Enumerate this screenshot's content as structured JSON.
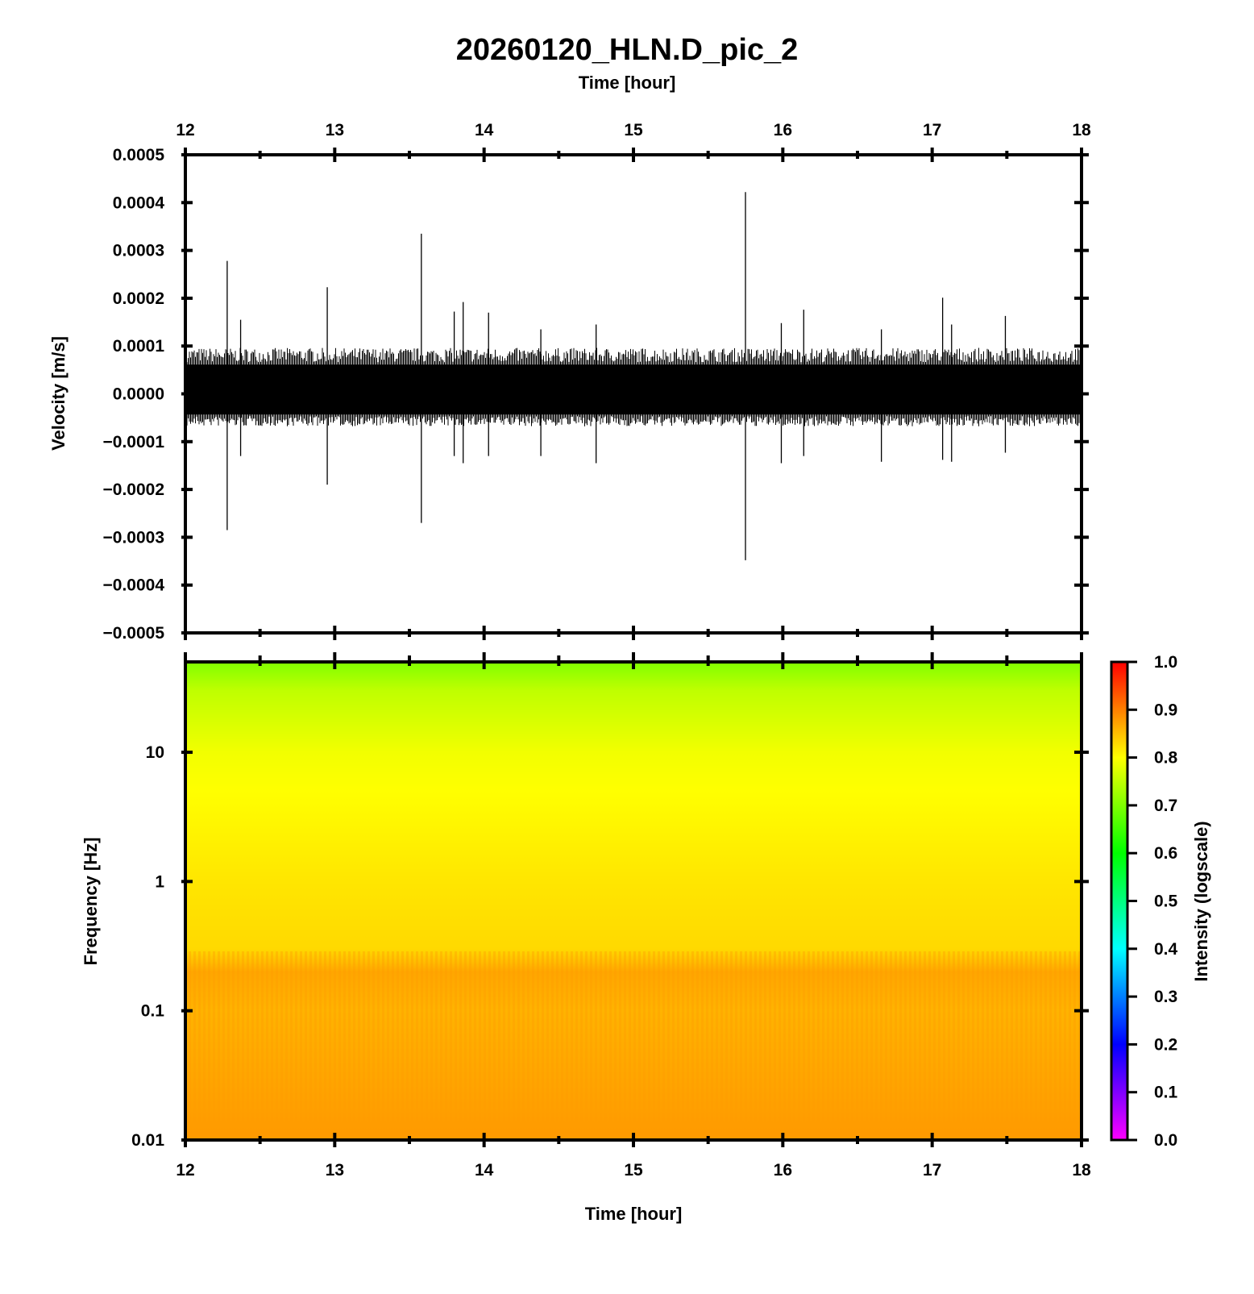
{
  "figure": {
    "title": "20260120_HLN.D_pic_2"
  },
  "chart_data": [
    {
      "type": "line",
      "panel": "waveform",
      "xlabel": "Time [hour]",
      "ylabel": "Velocity [m/s]",
      "xlim": [
        12,
        18
      ],
      "ylim": [
        -0.0005,
        0.0005
      ],
      "xticks": [
        "12",
        "13",
        "14",
        "15",
        "16",
        "17",
        "18"
      ],
      "yticks": [
        "0.0005",
        "0.0004",
        "0.0003",
        "0.0002",
        "0.0001",
        "0.0000",
        "−0.0001",
        "−0.0002",
        "−0.0003",
        "−0.0004",
        "−0.0005"
      ],
      "noise_band": {
        "upper": 8.5e-05,
        "lower": -6e-05
      },
      "spikes": [
        {
          "t": 12.28,
          "max": 0.000278,
          "min": -0.000285
        },
        {
          "t": 12.37,
          "max": 0.000155,
          "min": -0.00013
        },
        {
          "t": 12.95,
          "max": 0.000223,
          "min": -0.00019
        },
        {
          "t": 13.58,
          "max": 0.000335,
          "min": -0.00027
        },
        {
          "t": 13.8,
          "max": 0.000172,
          "min": -0.00013
        },
        {
          "t": 13.86,
          "max": 0.000192,
          "min": -0.000145
        },
        {
          "t": 14.03,
          "max": 0.00017,
          "min": -0.00013
        },
        {
          "t": 14.38,
          "max": 0.000135,
          "min": -0.00013
        },
        {
          "t": 14.75,
          "max": 0.000145,
          "min": -0.000145
        },
        {
          "t": 15.75,
          "max": 0.000422,
          "min": -0.000348
        },
        {
          "t": 15.99,
          "max": 0.000148,
          "min": -0.000145
        },
        {
          "t": 16.14,
          "max": 0.000176,
          "min": -0.00013
        },
        {
          "t": 16.66,
          "max": 0.000135,
          "min": -0.000142
        },
        {
          "t": 17.07,
          "max": 0.000201,
          "min": -0.000138
        },
        {
          "t": 17.13,
          "max": 0.000145,
          "min": -0.000142
        },
        {
          "t": 17.49,
          "max": 0.000163,
          "min": -0.000123
        }
      ],
      "colors": {
        "trace": "#000000"
      }
    },
    {
      "type": "heatmap",
      "panel": "spectrogram",
      "xlabel": "Time [hour]",
      "ylabel": "Frequency [Hz]",
      "xlim": [
        12,
        18
      ],
      "ylim": [
        0.01,
        50
      ],
      "yscale": "log",
      "xticks": [
        "12",
        "13",
        "14",
        "15",
        "16",
        "17",
        "18"
      ],
      "yticks": [
        "10",
        "1",
        "0.1",
        "0.01"
      ],
      "colorbar": {
        "label": "Intensity (logscale)",
        "range": [
          0,
          1
        ],
        "ticks": [
          "1.0",
          "0.9",
          "0.8",
          "0.7",
          "0.6",
          "0.5",
          "0.4",
          "0.3",
          "0.2",
          "0.1",
          "0.0"
        ],
        "colors": [
          "#ff00ff",
          "#0000ff",
          "#00ffff",
          "#00ff00",
          "#ffff00",
          "#ff0000"
        ]
      },
      "intensity_profile": [
        {
          "freq": 50,
          "value": 0.7
        },
        {
          "freq": 30,
          "value": 0.75
        },
        {
          "freq": 10,
          "value": 0.79
        },
        {
          "freq": 5,
          "value": 0.8
        },
        {
          "freq": 1,
          "value": 0.82
        },
        {
          "freq": 0.3,
          "value": 0.83
        },
        {
          "freq": 0.2,
          "value": 0.87
        },
        {
          "freq": 0.1,
          "value": 0.86
        },
        {
          "freq": 0.01,
          "value": 0.88
        }
      ]
    }
  ]
}
